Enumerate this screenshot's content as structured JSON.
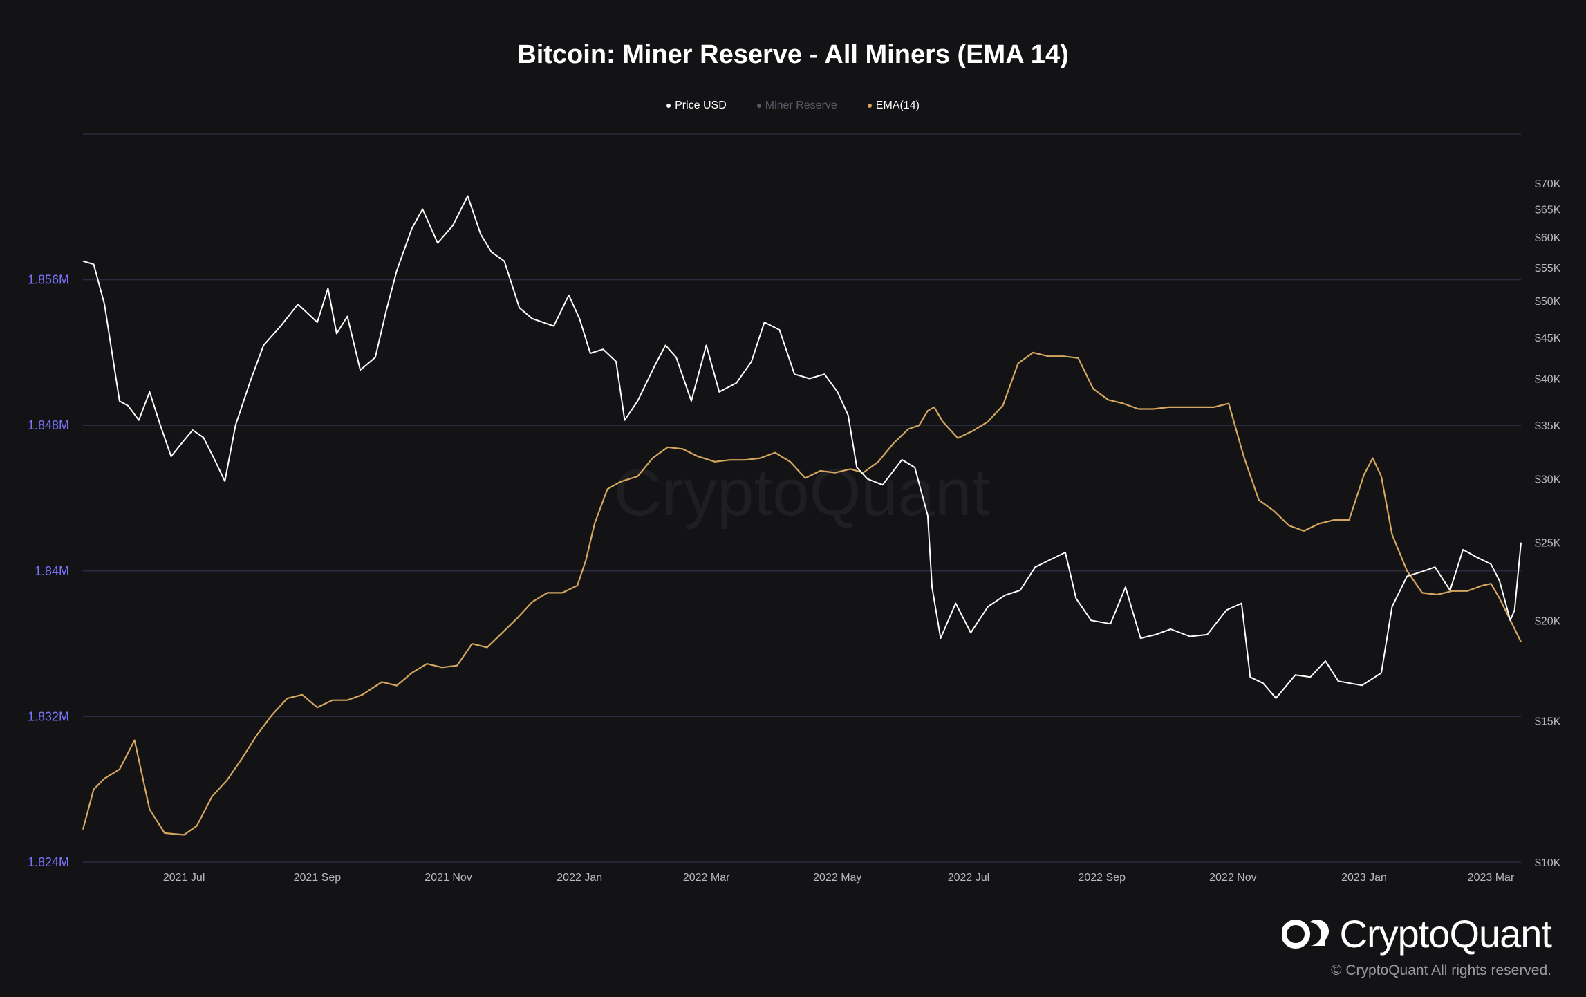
{
  "chart_data": {
    "type": "line",
    "title": "Bitcoin: Miner Reserve - All Miners (EMA 14)",
    "legend": [
      {
        "label": "Price USD",
        "color": "#ffffff"
      },
      {
        "label": "Miner Reserve",
        "color": "#5a5a66"
      },
      {
        "label": "EMA(14)",
        "color": "#d4a660"
      }
    ],
    "x_ticks": [
      "2021 Jul",
      "2021 Sep",
      "2021 Nov",
      "2022 Jan",
      "2022 Mar",
      "2022 May",
      "2022 Jul",
      "2022 Sep",
      "2022 Nov",
      "2023 Jan",
      "2023 Mar"
    ],
    "x_tick_dates": [
      "2021-07-01",
      "2021-09-01",
      "2021-11-01",
      "2022-01-01",
      "2022-03-01",
      "2022-05-01",
      "2022-07-01",
      "2022-09-01",
      "2022-11-01",
      "2023-01-01",
      "2023-03-01"
    ],
    "x_range": [
      "2021-05-15",
      "2023-03-15"
    ],
    "left_axis": {
      "ticks": [
        "1.824M",
        "1.832M",
        "1.84M",
        "1.848M",
        "1.856M"
      ],
      "tick_values": [
        1824000,
        1832000,
        1840000,
        1848000,
        1856000
      ],
      "range": [
        1824000,
        1864000
      ],
      "color": "#7b74ff"
    },
    "right_axis": {
      "scale": "log",
      "ticks": [
        "$10K",
        "$15K",
        "$20K",
        "$25K",
        "$30K",
        "$35K",
        "$40K",
        "$45K",
        "$50K",
        "$55K",
        "$60K",
        "$65K",
        "$70K"
      ],
      "tick_values": [
        10000,
        15000,
        20000,
        25000,
        30000,
        35000,
        40000,
        45000,
        50000,
        55000,
        60000,
        65000,
        70000
      ],
      "range": [
        10000,
        80600
      ]
    },
    "grid": true,
    "series": [
      {
        "name": "Price USD",
        "axis": "right",
        "color": "#ffffff",
        "points": [
          [
            "2021-05-15",
            56000
          ],
          [
            "2021-05-20",
            55500
          ],
          [
            "2021-05-25",
            49500
          ],
          [
            "2021-06-01",
            37500
          ],
          [
            "2021-06-05",
            37000
          ],
          [
            "2021-06-10",
            35500
          ],
          [
            "2021-06-15",
            38500
          ],
          [
            "2021-06-20",
            35000
          ],
          [
            "2021-06-25",
            32000
          ],
          [
            "2021-07-01",
            33500
          ],
          [
            "2021-07-05",
            34500
          ],
          [
            "2021-07-10",
            33800
          ],
          [
            "2021-07-15",
            31800
          ],
          [
            "2021-07-20",
            29800
          ],
          [
            "2021-07-25",
            35000
          ],
          [
            "2021-08-01",
            39800
          ],
          [
            "2021-08-07",
            44000
          ],
          [
            "2021-08-15",
            46500
          ],
          [
            "2021-08-23",
            49500
          ],
          [
            "2021-09-01",
            47000
          ],
          [
            "2021-09-06",
            51800
          ],
          [
            "2021-09-10",
            45500
          ],
          [
            "2021-09-15",
            47800
          ],
          [
            "2021-09-21",
            41000
          ],
          [
            "2021-09-28",
            42500
          ],
          [
            "2021-10-03",
            48500
          ],
          [
            "2021-10-08",
            54500
          ],
          [
            "2021-10-15",
            61500
          ],
          [
            "2021-10-20",
            65000
          ],
          [
            "2021-10-27",
            59000
          ],
          [
            "2021-11-03",
            62000
          ],
          [
            "2021-11-10",
            67500
          ],
          [
            "2021-11-16",
            60500
          ],
          [
            "2021-11-21",
            57500
          ],
          [
            "2021-11-27",
            56000
          ],
          [
            "2021-12-04",
            49000
          ],
          [
            "2021-12-10",
            47500
          ],
          [
            "2021-12-20",
            46500
          ],
          [
            "2021-12-27",
            50800
          ],
          [
            "2022-01-01",
            47500
          ],
          [
            "2022-01-06",
            43000
          ],
          [
            "2022-01-12",
            43500
          ],
          [
            "2022-01-18",
            42000
          ],
          [
            "2022-01-22",
            35500
          ],
          [
            "2022-01-28",
            37500
          ],
          [
            "2022-02-05",
            41500
          ],
          [
            "2022-02-10",
            44000
          ],
          [
            "2022-02-15",
            42500
          ],
          [
            "2022-02-22",
            37500
          ],
          [
            "2022-03-01",
            44000
          ],
          [
            "2022-03-07",
            38500
          ],
          [
            "2022-03-15",
            39500
          ],
          [
            "2022-03-22",
            42000
          ],
          [
            "2022-03-28",
            47000
          ],
          [
            "2022-04-04",
            46000
          ],
          [
            "2022-04-11",
            40500
          ],
          [
            "2022-04-18",
            40000
          ],
          [
            "2022-04-25",
            40500
          ],
          [
            "2022-05-01",
            38500
          ],
          [
            "2022-05-06",
            36000
          ],
          [
            "2022-05-10",
            31000
          ],
          [
            "2022-05-15",
            30000
          ],
          [
            "2022-05-22",
            29500
          ],
          [
            "2022-05-31",
            31700
          ],
          [
            "2022-06-06",
            31000
          ],
          [
            "2022-06-12",
            27000
          ],
          [
            "2022-06-14",
            22000
          ],
          [
            "2022-06-18",
            19000
          ],
          [
            "2022-06-25",
            21000
          ],
          [
            "2022-07-02",
            19300
          ],
          [
            "2022-07-10",
            20800
          ],
          [
            "2022-07-18",
            21500
          ],
          [
            "2022-07-25",
            21800
          ],
          [
            "2022-08-01",
            23300
          ],
          [
            "2022-08-08",
            23800
          ],
          [
            "2022-08-15",
            24300
          ],
          [
            "2022-08-20",
            21300
          ],
          [
            "2022-08-27",
            20000
          ],
          [
            "2022-09-05",
            19800
          ],
          [
            "2022-09-12",
            22000
          ],
          [
            "2022-09-19",
            19000
          ],
          [
            "2022-09-26",
            19200
          ],
          [
            "2022-10-03",
            19500
          ],
          [
            "2022-10-12",
            19100
          ],
          [
            "2022-10-20",
            19200
          ],
          [
            "2022-10-29",
            20600
          ],
          [
            "2022-11-05",
            21000
          ],
          [
            "2022-11-09",
            17000
          ],
          [
            "2022-11-15",
            16700
          ],
          [
            "2022-11-21",
            16000
          ],
          [
            "2022-11-30",
            17100
          ],
          [
            "2022-12-07",
            17000
          ],
          [
            "2022-12-14",
            17800
          ],
          [
            "2022-12-20",
            16800
          ],
          [
            "2022-12-31",
            16600
          ],
          [
            "2023-01-09",
            17200
          ],
          [
            "2023-01-14",
            20800
          ],
          [
            "2023-01-21",
            22700
          ],
          [
            "2023-01-28",
            23000
          ],
          [
            "2023-02-03",
            23300
          ],
          [
            "2023-02-10",
            21800
          ],
          [
            "2023-02-16",
            24500
          ],
          [
            "2023-02-22",
            24000
          ],
          [
            "2023-03-01",
            23500
          ],
          [
            "2023-03-05",
            22400
          ],
          [
            "2023-03-10",
            20000
          ],
          [
            "2023-03-12",
            20600
          ],
          [
            "2023-03-15",
            25000
          ]
        ]
      },
      {
        "name": "EMA(14)",
        "axis": "left",
        "color": "#d4a660",
        "points": [
          [
            "2021-05-15",
            1825800
          ],
          [
            "2021-05-20",
            1828000
          ],
          [
            "2021-05-25",
            1828600
          ],
          [
            "2021-06-01",
            1829100
          ],
          [
            "2021-06-08",
            1830700
          ],
          [
            "2021-06-15",
            1826900
          ],
          [
            "2021-06-22",
            1825600
          ],
          [
            "2021-07-01",
            1825500
          ],
          [
            "2021-07-07",
            1826000
          ],
          [
            "2021-07-14",
            1827600
          ],
          [
            "2021-07-21",
            1828500
          ],
          [
            "2021-07-28",
            1829700
          ],
          [
            "2021-08-04",
            1831000
          ],
          [
            "2021-08-11",
            1832100
          ],
          [
            "2021-08-18",
            1833000
          ],
          [
            "2021-08-25",
            1833200
          ],
          [
            "2021-09-01",
            1832500
          ],
          [
            "2021-09-08",
            1832900
          ],
          [
            "2021-09-15",
            1832900
          ],
          [
            "2021-09-22",
            1833200
          ],
          [
            "2021-10-01",
            1833900
          ],
          [
            "2021-10-08",
            1833700
          ],
          [
            "2021-10-15",
            1834400
          ],
          [
            "2021-10-22",
            1834900
          ],
          [
            "2021-10-29",
            1834700
          ],
          [
            "2021-11-05",
            1834800
          ],
          [
            "2021-11-12",
            1836000
          ],
          [
            "2021-11-19",
            1835800
          ],
          [
            "2021-11-26",
            1836600
          ],
          [
            "2021-12-03",
            1837400
          ],
          [
            "2021-12-10",
            1838300
          ],
          [
            "2021-12-17",
            1838800
          ],
          [
            "2021-12-24",
            1838800
          ],
          [
            "2021-12-31",
            1839200
          ],
          [
            "2022-01-04",
            1840600
          ],
          [
            "2022-01-08",
            1842600
          ],
          [
            "2022-01-14",
            1844500
          ],
          [
            "2022-01-20",
            1844900
          ],
          [
            "2022-01-28",
            1845200
          ],
          [
            "2022-02-04",
            1846200
          ],
          [
            "2022-02-11",
            1846800
          ],
          [
            "2022-02-18",
            1846700
          ],
          [
            "2022-02-25",
            1846300
          ],
          [
            "2022-03-05",
            1846000
          ],
          [
            "2022-03-12",
            1846100
          ],
          [
            "2022-03-19",
            1846100
          ],
          [
            "2022-03-26",
            1846200
          ],
          [
            "2022-04-02",
            1846500
          ],
          [
            "2022-04-09",
            1846000
          ],
          [
            "2022-04-16",
            1845100
          ],
          [
            "2022-04-23",
            1845500
          ],
          [
            "2022-04-30",
            1845400
          ],
          [
            "2022-05-07",
            1845600
          ],
          [
            "2022-05-13",
            1845400
          ],
          [
            "2022-05-20",
            1846000
          ],
          [
            "2022-05-27",
            1847000
          ],
          [
            "2022-06-03",
            1847800
          ],
          [
            "2022-06-08",
            1848000
          ],
          [
            "2022-06-12",
            1848800
          ],
          [
            "2022-06-15",
            1849000
          ],
          [
            "2022-06-19",
            1848200
          ],
          [
            "2022-06-26",
            1847300
          ],
          [
            "2022-07-03",
            1847700
          ],
          [
            "2022-07-10",
            1848200
          ],
          [
            "2022-07-17",
            1849100
          ],
          [
            "2022-07-24",
            1851400
          ],
          [
            "2022-07-31",
            1852000
          ],
          [
            "2022-08-07",
            1851800
          ],
          [
            "2022-08-14",
            1851800
          ],
          [
            "2022-08-21",
            1851700
          ],
          [
            "2022-08-28",
            1850000
          ],
          [
            "2022-09-04",
            1849400
          ],
          [
            "2022-09-11",
            1849200
          ],
          [
            "2022-09-18",
            1848900
          ],
          [
            "2022-09-25",
            1848900
          ],
          [
            "2022-10-02",
            1849000
          ],
          [
            "2022-10-09",
            1849000
          ],
          [
            "2022-10-16",
            1849000
          ],
          [
            "2022-10-23",
            1849000
          ],
          [
            "2022-10-30",
            1849200
          ],
          [
            "2022-11-06",
            1846300
          ],
          [
            "2022-11-13",
            1843900
          ],
          [
            "2022-11-20",
            1843300
          ],
          [
            "2022-11-27",
            1842500
          ],
          [
            "2022-12-04",
            1842200
          ],
          [
            "2022-12-11",
            1842600
          ],
          [
            "2022-12-18",
            1842800
          ],
          [
            "2022-12-25",
            1842800
          ],
          [
            "2023-01-01",
            1845300
          ],
          [
            "2023-01-05",
            1846200
          ],
          [
            "2023-01-09",
            1845200
          ],
          [
            "2023-01-14",
            1842000
          ],
          [
            "2023-01-21",
            1840000
          ],
          [
            "2023-01-28",
            1838800
          ],
          [
            "2023-02-04",
            1838700
          ],
          [
            "2023-02-11",
            1838900
          ],
          [
            "2023-02-18",
            1838900
          ],
          [
            "2023-02-25",
            1839200
          ],
          [
            "2023-03-01",
            1839300
          ],
          [
            "2023-03-05",
            1838500
          ],
          [
            "2023-03-10",
            1837300
          ],
          [
            "2023-03-15",
            1836100
          ]
        ]
      }
    ]
  },
  "watermark": "CryptoQuant",
  "brand": {
    "name": "CryptoQuant",
    "copyright": "© CryptoQuant All rights reserved."
  }
}
